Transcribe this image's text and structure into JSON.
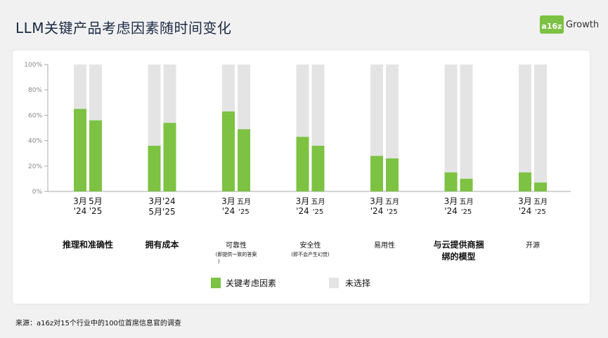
{
  "header": {
    "title": "LLM关键产品考虑因素随时间变化",
    "logo_mark": "a16z",
    "logo_word": "Growth"
  },
  "colors": {
    "selected": "#7dc243",
    "unselected": "#e4e4e4",
    "axis": "#aaaaaa"
  },
  "chart_data": {
    "type": "bar",
    "stacked_to_100": true,
    "ylim": [
      0,
      100
    ],
    "yticks": [
      "0%",
      "20%",
      "40%",
      "60%",
      "80%",
      "100%"
    ],
    "grid": false,
    "legend_position": "bottom-center",
    "categories": [
      {
        "label_lines": [
          "推理和准确性"
        ],
        "sub_lines": [],
        "x_labels": [
          [
            "3月",
            "'24"
          ],
          [
            "5月",
            "'25"
          ]
        ],
        "values": [
          65,
          56
        ]
      },
      {
        "label_lines": [
          "拥有成本"
        ],
        "sub_lines": [],
        "x_labels": [
          [
            "3月'24",
            "5月'25"
          ]
        ],
        "values": [
          36,
          54
        ]
      },
      {
        "label_lines": [
          "可靠性"
        ],
        "sub_lines": [
          "(即提供一致的答案",
          ")"
        ],
        "x_labels": [
          [
            "3月",
            "'24"
          ],
          [
            "五月",
            "'25"
          ]
        ],
        "values": [
          63,
          49
        ]
      },
      {
        "label_lines": [
          "安全性"
        ],
        "sub_lines": [
          "(即不会产生幻觉)"
        ],
        "x_labels": [
          [
            "3月",
            "'24"
          ],
          [
            "五月",
            "'25"
          ]
        ],
        "values": [
          43,
          36
        ]
      },
      {
        "label_lines": [
          "易用性"
        ],
        "sub_lines": [],
        "x_labels": [
          [
            "3月",
            "'24"
          ],
          [
            "五月",
            "'25"
          ]
        ],
        "values": [
          28,
          26
        ]
      },
      {
        "label_lines": [
          "与云提供商捆",
          "绑的模型"
        ],
        "sub_lines": [],
        "x_labels": [
          [
            "3月",
            "'24"
          ],
          [
            "五月",
            "'25"
          ]
        ],
        "values": [
          15,
          10
        ]
      },
      {
        "label_lines": [
          "开源"
        ],
        "sub_lines": [],
        "x_labels": [
          [
            "3月",
            "'24"
          ],
          [
            "五月",
            "'25"
          ]
        ],
        "values": [
          15,
          7
        ]
      }
    ],
    "legend": [
      "关键考虑因素",
      "未选择"
    ]
  },
  "footer": {
    "source": "来源：a16z对15个行业中的100位首席信息官的调查"
  }
}
